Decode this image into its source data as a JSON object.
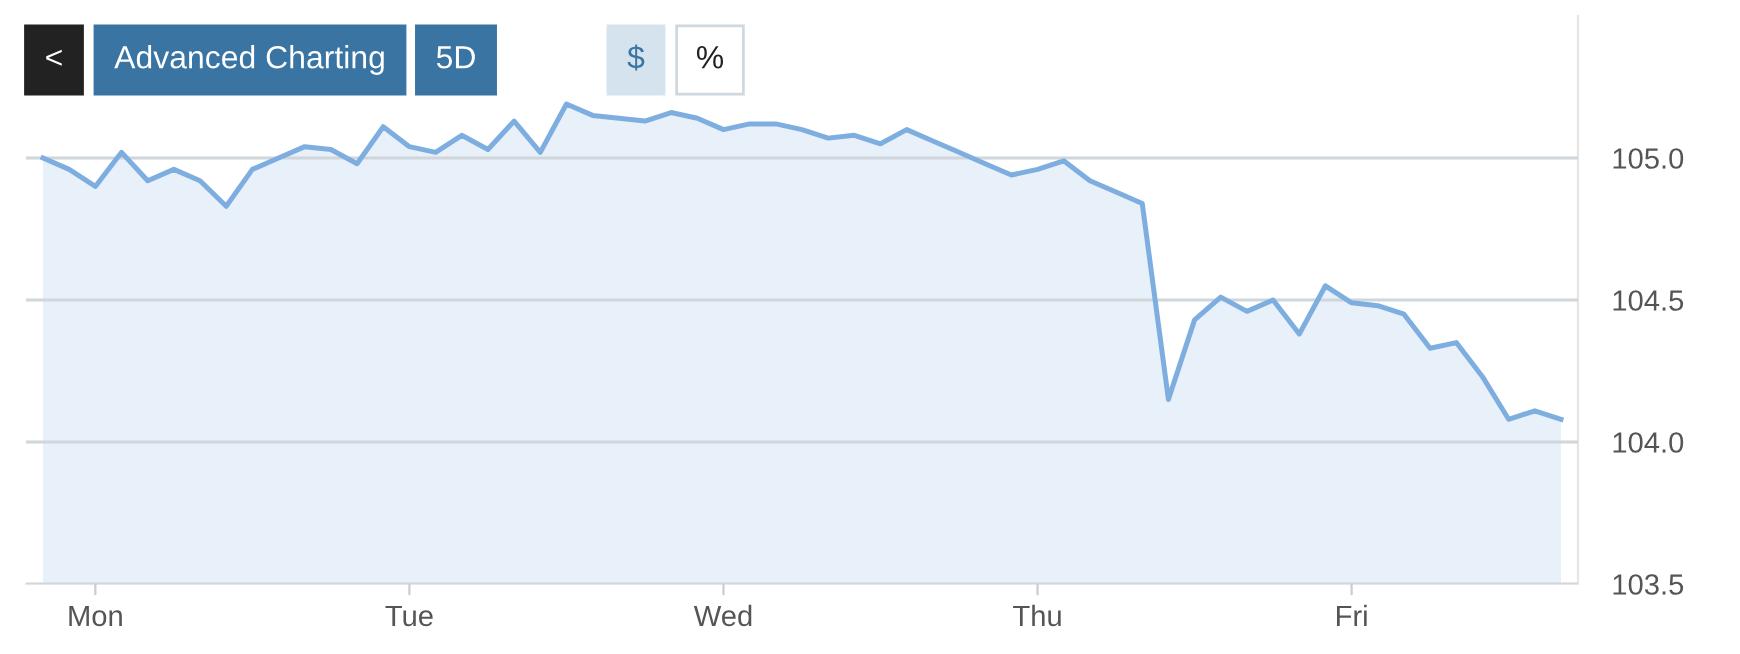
{
  "chart_data": {
    "type": "area",
    "annotations": [
      "<",
      "Advanced Charting",
      "5D",
      "$",
      "%"
    ],
    "categories": [
      null,
      null,
      "Mon",
      null,
      null,
      null,
      null,
      null,
      null,
      null,
      null,
      null,
      null,
      null,
      "Tue",
      null,
      null,
      null,
      null,
      null,
      null,
      null,
      null,
      null,
      null,
      null,
      "Wed",
      null,
      null,
      null,
      null,
      null,
      null,
      null,
      null,
      null,
      null,
      null,
      "Thu",
      null,
      null,
      null,
      null,
      null,
      null,
      null,
      null,
      null,
      null,
      null,
      "Fri",
      null,
      null,
      null,
      null,
      null,
      null,
      null,
      null
    ],
    "series": [
      {
        "color": "#7eaee0",
        "values": [
          105.0,
          104.96,
          104.9,
          105.02,
          104.92,
          104.96,
          104.92,
          104.83,
          104.96,
          105.0,
          105.04,
          105.03,
          104.98,
          105.11,
          105.04,
          105.02,
          105.08,
          105.03,
          105.13,
          105.02,
          105.19,
          105.15,
          105.14,
          105.13,
          105.16,
          105.14,
          105.1,
          105.12,
          105.12,
          105.1,
          105.07,
          105.08,
          105.05,
          105.1,
          105.06,
          105.02,
          104.98,
          104.94,
          104.96,
          104.99,
          104.92,
          104.88,
          104.84,
          104.15,
          104.43,
          104.51,
          104.46,
          104.5,
          104.38,
          104.55,
          104.49,
          104.48,
          104.45,
          104.33,
          104.35,
          104.23,
          104.08,
          104.11,
          104.08
        ]
      }
    ],
    "ylim": [
      103.5,
      105.5
    ],
    "yticks": [
      {
        "value": 103.5,
        "label": "103.5"
      },
      {
        "value": 104.0,
        "label": "104.0"
      },
      {
        "value": 104.5,
        "label": "104.5"
      },
      {
        "value": 105.0,
        "label": "105.0"
      }
    ],
    "grid": "y"
  }
}
